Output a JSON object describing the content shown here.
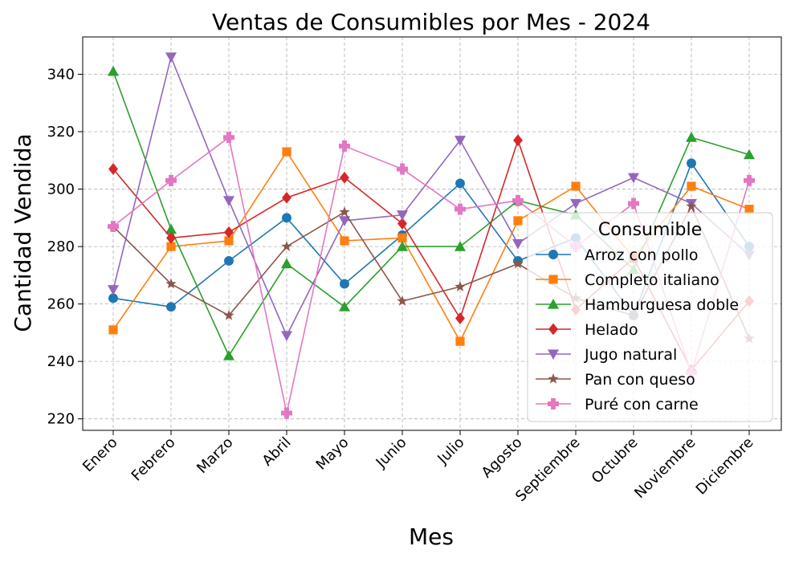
{
  "chart_data": {
    "type": "line",
    "title": "Ventas de Consumibles por Mes - 2024",
    "xlabel": "Mes",
    "ylabel": "Cantidad Vendida",
    "categories": [
      "Enero",
      "Febrero",
      "Marzo",
      "Abril",
      "Mayo",
      "Junio",
      "Julio",
      "Agosto",
      "Septiembre",
      "Octubre",
      "Noviembre",
      "Diciembre"
    ],
    "ylim": [
      216,
      353
    ],
    "yticks": [
      220,
      240,
      260,
      280,
      300,
      320,
      340
    ],
    "grid": true,
    "legend": {
      "title": "Consumible",
      "position": "right"
    },
    "series": [
      {
        "name": "Arroz con pollo",
        "color": "#1f77b4",
        "marker": "circle",
        "values": [
          262,
          259,
          275,
          290,
          267,
          284,
          302,
          275,
          283,
          256,
          309,
          280
        ]
      },
      {
        "name": "Completo italiano",
        "color": "#ff7f0e",
        "marker": "square",
        "values": [
          251,
          280,
          282,
          313,
          282,
          283,
          247,
          289,
          301,
          276,
          301,
          293
        ]
      },
      {
        "name": "Hamburguesa doble",
        "color": "#2ca02c",
        "marker": "triangle-up",
        "values": [
          341,
          286,
          242,
          274,
          259,
          280,
          280,
          296,
          291,
          272,
          318,
          312
        ]
      },
      {
        "name": "Helado",
        "color": "#d62728",
        "marker": "diamond",
        "values": [
          307,
          283,
          285,
          297,
          304,
          288,
          255,
          317,
          258,
          276,
          237,
          261
        ]
      },
      {
        "name": "Jugo natural",
        "color": "#9467bd",
        "marker": "triangle-down",
        "values": [
          265,
          346,
          296,
          249,
          289,
          291,
          317,
          281,
          295,
          304,
          295,
          277
        ]
      },
      {
        "name": "Pan con queso",
        "color": "#8c564b",
        "marker": "star",
        "values": [
          287,
          267,
          256,
          280,
          292,
          261,
          266,
          274,
          262,
          256,
          294,
          248
        ]
      },
      {
        "name": "Puré con carne",
        "color": "#e377c2",
        "marker": "plus",
        "values": [
          287,
          303,
          318,
          222,
          315,
          307,
          293,
          296,
          280,
          295,
          236,
          303
        ]
      }
    ]
  }
}
